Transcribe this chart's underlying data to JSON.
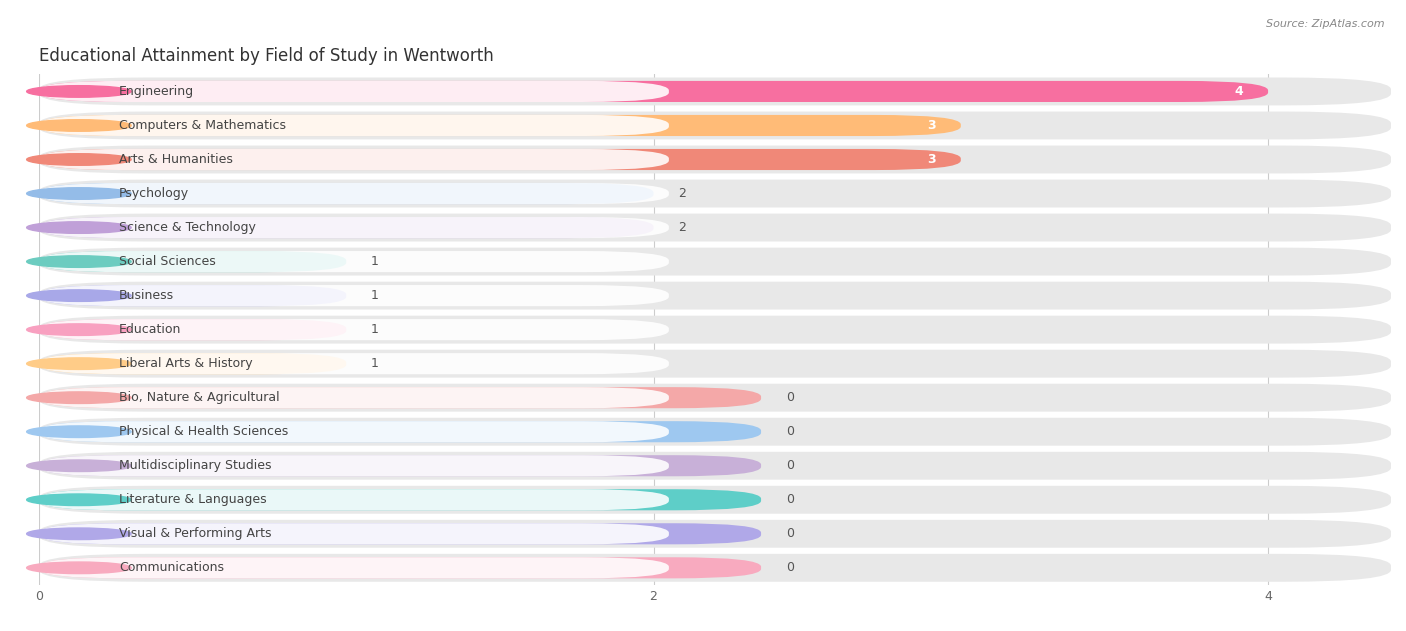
{
  "title": "Educational Attainment by Field of Study in Wentworth",
  "source": "Source: ZipAtlas.com",
  "categories": [
    "Engineering",
    "Computers & Mathematics",
    "Arts & Humanities",
    "Psychology",
    "Science & Technology",
    "Social Sciences",
    "Business",
    "Education",
    "Liberal Arts & History",
    "Bio, Nature & Agricultural",
    "Physical & Health Sciences",
    "Multidisciplinary Studies",
    "Literature & Languages",
    "Visual & Performing Arts",
    "Communications"
  ],
  "values": [
    4,
    3,
    3,
    2,
    2,
    1,
    1,
    1,
    1,
    0,
    0,
    0,
    0,
    0,
    0
  ],
  "bar_colors": [
    "#F76FA0",
    "#FFBB77",
    "#F08878",
    "#94BCE8",
    "#C0A0D8",
    "#6CCCC0",
    "#A8A8E8",
    "#F8A0C0",
    "#FFCC88",
    "#F4A8A8",
    "#9EC8F0",
    "#C8B0D8",
    "#5ECEC8",
    "#B0A8E8",
    "#F8AABF"
  ],
  "xlim_max": 4.4,
  "background_color": "#ffffff",
  "row_bg": "#eeeeee",
  "title_fontsize": 12,
  "label_fontsize": 9,
  "value_fontsize": 9
}
